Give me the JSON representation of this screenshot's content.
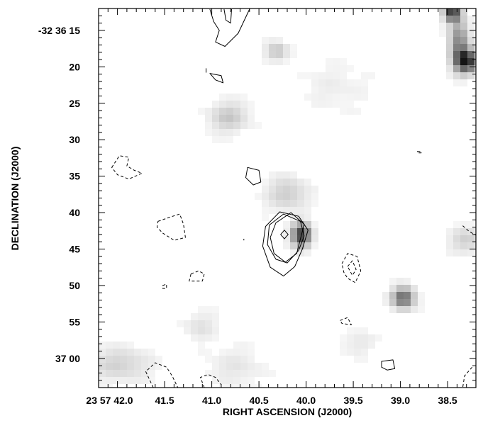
{
  "chart_data": {
    "type": "heatmap",
    "title": "",
    "xlabel": "RIGHT ASCENSION (J2000)",
    "ylabel": "DECLINATION (J2000)",
    "x_unit": "seconds of RA (23 57 ss)",
    "y_unit": "arcsec offset (-32 36 ss)",
    "xlim": [
      42.2,
      38.2
    ],
    "ylim": [
      12.0,
      64.0
    ],
    "colormap": "grayscale, white = low, black = high",
    "x_ticks": [
      {
        "value": 42.0,
        "label": "23 57 42.0"
      },
      {
        "value": 41.5,
        "label": "41.5"
      },
      {
        "value": 41.0,
        "label": "41.0"
      },
      {
        "value": 40.5,
        "label": "40.5"
      },
      {
        "value": 40.0,
        "label": "40.0"
      },
      {
        "value": 39.5,
        "label": "39.5"
      },
      {
        "value": 39.0,
        "label": "39.0"
      },
      {
        "value": 38.5,
        "label": "38.5"
      }
    ],
    "y_ticks": [
      {
        "value": 15,
        "label": "-32 36 15"
      },
      {
        "value": 20,
        "label": "20"
      },
      {
        "value": 25,
        "label": "25"
      },
      {
        "value": 30,
        "label": "30"
      },
      {
        "value": 35,
        "label": "35"
      },
      {
        "value": 40,
        "label": "40"
      },
      {
        "value": 45,
        "label": "45"
      },
      {
        "value": 50,
        "label": "50"
      },
      {
        "value": 55,
        "label": "55"
      },
      {
        "value": 60,
        "label": "37 00"
      }
    ],
    "image_sources": [
      {
        "ra": 40.05,
        "dec": 43.1,
        "sigma_ra": 0.07,
        "sigma_dec": 1.1,
        "amplitude": 0.75
      },
      {
        "ra": 40.2,
        "dec": 37.4,
        "sigma_ra": 0.15,
        "sigma_dec": 1.6,
        "amplitude": 0.18
      },
      {
        "ra": 38.97,
        "dec": 51.7,
        "sigma_ra": 0.08,
        "sigma_dec": 1.0,
        "amplitude": 0.6
      },
      {
        "ra": 38.3,
        "dec": 19.2,
        "sigma_ra": 0.08,
        "sigma_dec": 1.1,
        "amplitude": 0.85
      },
      {
        "ra": 38.38,
        "dec": 16.5,
        "sigma_ra": 0.07,
        "sigma_dec": 2.2,
        "amplitude": 0.45
      },
      {
        "ra": 38.45,
        "dec": 12.6,
        "sigma_ra": 0.06,
        "sigma_dec": 0.8,
        "amplitude": 0.75
      },
      {
        "ra": 40.31,
        "dec": 17.9,
        "sigma_ra": 0.08,
        "sigma_dec": 0.9,
        "amplitude": 0.22
      },
      {
        "ra": 40.82,
        "dec": 26.9,
        "sigma_ra": 0.14,
        "sigma_dec": 1.4,
        "amplitude": 0.2
      },
      {
        "ra": 38.3,
        "dec": 43.8,
        "sigma_ra": 0.12,
        "sigma_dec": 1.2,
        "amplitude": 0.17
      },
      {
        "ra": 41.98,
        "dec": 60.8,
        "sigma_ra": 0.22,
        "sigma_dec": 1.6,
        "amplitude": 0.16
      },
      {
        "ra": 41.12,
        "dec": 55.6,
        "sigma_ra": 0.12,
        "sigma_dec": 1.3,
        "amplitude": 0.1
      },
      {
        "ra": 39.45,
        "dec": 57.9,
        "sigma_ra": 0.14,
        "sigma_dec": 1.2,
        "amplitude": 0.07
      },
      {
        "ra": 40.75,
        "dec": 61.2,
        "sigma_ra": 0.2,
        "sigma_dec": 1.8,
        "amplitude": 0.08
      },
      {
        "ra": 39.7,
        "dec": 22.8,
        "sigma_ra": 0.25,
        "sigma_dec": 2.2,
        "amplitude": 0.05
      }
    ],
    "contours": [
      {
        "name": "source-contour-1",
        "style": "solid",
        "closed": true,
        "points": [
          [
            40.32,
            41.4
          ],
          [
            40.16,
            40.0
          ],
          [
            40.02,
            41.6
          ],
          [
            40.06,
            43.6
          ],
          [
            40.1,
            45.6
          ],
          [
            40.22,
            46.8
          ],
          [
            40.34,
            45.6
          ],
          [
            40.38,
            43.4
          ]
        ]
      },
      {
        "name": "source-contour-2",
        "style": "solid",
        "closed": true,
        "points": [
          [
            40.39,
            41.7
          ],
          [
            40.24,
            40.2
          ],
          [
            40.06,
            41.2
          ],
          [
            40.02,
            43.2
          ],
          [
            40.08,
            45.2
          ],
          [
            40.2,
            46.9
          ],
          [
            40.32,
            46.4
          ],
          [
            40.41,
            44.4
          ]
        ]
      },
      {
        "name": "source-contour-3",
        "style": "solid",
        "closed": true,
        "points": [
          [
            40.43,
            41.9
          ],
          [
            40.28,
            39.9
          ],
          [
            40.08,
            40.5
          ],
          [
            39.98,
            42.4
          ],
          [
            40.04,
            45.0
          ],
          [
            40.12,
            47.4
          ],
          [
            40.24,
            48.7
          ],
          [
            40.38,
            47.5
          ],
          [
            40.46,
            44.6
          ]
        ]
      },
      {
        "name": "source-contour-4",
        "style": "solid",
        "closed": true,
        "points": [
          [
            40.23,
            42.4
          ],
          [
            40.19,
            43.0
          ],
          [
            40.23,
            43.6
          ],
          [
            40.27,
            43.0
          ]
        ]
      },
      {
        "name": "contour-top-1",
        "style": "solid",
        "closed": false,
        "points": [
          [
            41.02,
            12.1
          ],
          [
            40.98,
            13.8
          ],
          [
            40.92,
            15.0
          ],
          [
            40.96,
            16.6
          ],
          [
            40.86,
            17.2
          ],
          [
            40.72,
            15.4
          ],
          [
            40.6,
            12.1
          ]
        ]
      },
      {
        "name": "contour-top-2",
        "style": "solid",
        "closed": false,
        "points": [
          [
            40.87,
            12.1
          ],
          [
            40.85,
            13.6
          ],
          [
            40.8,
            14.0
          ],
          [
            40.79,
            12.1
          ]
        ]
      },
      {
        "name": "contour-small-a",
        "style": "solid",
        "closed": true,
        "points": [
          [
            41.02,
            20.9
          ],
          [
            40.9,
            21.2
          ],
          [
            40.88,
            22.2
          ],
          [
            40.96,
            21.8
          ]
        ]
      },
      {
        "name": "contour-small-b",
        "style": "solid",
        "closed": false,
        "points": [
          [
            41.06,
            20.2
          ],
          [
            41.06,
            20.8
          ]
        ]
      },
      {
        "name": "contour-blob-35",
        "style": "solid",
        "closed": true,
        "points": [
          [
            40.62,
            33.8
          ],
          [
            40.5,
            34.2
          ],
          [
            40.48,
            35.8
          ],
          [
            40.56,
            36.2
          ],
          [
            40.64,
            35.2
          ]
        ]
      },
      {
        "name": "contour-39-57",
        "style": "solid",
        "closed": true,
        "points": [
          [
            39.2,
            60.4
          ],
          [
            39.08,
            60.2
          ],
          [
            39.06,
            61.4
          ],
          [
            39.14,
            61.6
          ],
          [
            39.2,
            61.2
          ]
        ]
      },
      {
        "name": "contour-right-edge",
        "style": "dashed",
        "closed": false,
        "points": [
          [
            38.34,
            41.8
          ],
          [
            38.27,
            42.6
          ],
          [
            38.2,
            43.1
          ]
        ]
      },
      {
        "name": "dashed-contour-1",
        "style": "dashed",
        "closed": true,
        "points": [
          [
            42.06,
            33.8
          ],
          [
            41.98,
            32.2
          ],
          [
            41.88,
            32.4
          ],
          [
            41.9,
            33.6
          ],
          [
            41.82,
            34.2
          ],
          [
            41.74,
            34.6
          ],
          [
            41.88,
            35.4
          ],
          [
            42.0,
            34.8
          ]
        ]
      },
      {
        "name": "dashed-contour-2",
        "style": "dashed",
        "closed": true,
        "points": [
          [
            41.57,
            41.2
          ],
          [
            41.44,
            40.6
          ],
          [
            41.34,
            40.2
          ],
          [
            41.3,
            41.6
          ],
          [
            41.28,
            43.4
          ],
          [
            41.4,
            43.8
          ],
          [
            41.52,
            42.8
          ],
          [
            41.58,
            42.0
          ]
        ]
      },
      {
        "name": "dashed-contour-3",
        "style": "dashed",
        "closed": true,
        "points": [
          [
            41.22,
            48.4
          ],
          [
            41.14,
            48.0
          ],
          [
            41.08,
            48.4
          ],
          [
            41.1,
            49.4
          ],
          [
            41.24,
            49.4
          ]
        ]
      },
      {
        "name": "dashed-contour-4",
        "style": "dashed",
        "closed": true,
        "points": [
          [
            39.62,
            47.0
          ],
          [
            39.56,
            45.6
          ],
          [
            39.46,
            46.0
          ],
          [
            39.42,
            48.0
          ],
          [
            39.48,
            49.6
          ],
          [
            39.56,
            49.0
          ],
          [
            39.6,
            48.2
          ]
        ]
      },
      {
        "name": "dashed-contour-5",
        "style": "dashed",
        "closed": true,
        "points": [
          [
            39.56,
            47.4
          ],
          [
            39.51,
            46.6
          ],
          [
            39.47,
            47.8
          ],
          [
            39.51,
            48.6
          ]
        ]
      },
      {
        "name": "dashed-contour-6",
        "style": "dashed",
        "closed": true,
        "points": [
          [
            39.64,
            54.8
          ],
          [
            39.56,
            54.4
          ],
          [
            39.52,
            55.4
          ],
          [
            39.62,
            55.2
          ]
        ]
      },
      {
        "name": "dashed-contour-7",
        "style": "dashed",
        "closed": true,
        "points": [
          [
            41.52,
            50.0
          ],
          [
            41.48,
            49.8
          ],
          [
            41.48,
            50.4
          ],
          [
            41.52,
            50.4
          ]
        ]
      },
      {
        "name": "dashed-contour-8",
        "style": "dashed",
        "closed": false,
        "points": [
          [
            41.62,
            64.0
          ],
          [
            41.7,
            61.8
          ],
          [
            41.6,
            60.6
          ],
          [
            41.48,
            61.2
          ],
          [
            41.42,
            62.4
          ],
          [
            41.36,
            64.0
          ]
        ]
      },
      {
        "name": "dashed-contour-9",
        "style": "dashed",
        "closed": false,
        "points": [
          [
            41.08,
            64.0
          ],
          [
            41.12,
            62.6
          ],
          [
            41.04,
            62.2
          ],
          [
            40.96,
            62.6
          ],
          [
            40.9,
            63.6
          ]
        ]
      },
      {
        "name": "dashed-contour-10",
        "style": "dashed",
        "closed": true,
        "points": [
          [
            38.82,
            31.6
          ],
          [
            38.78,
            31.6
          ],
          [
            38.78,
            31.8
          ],
          [
            38.82,
            31.8
          ]
        ]
      },
      {
        "name": "dashed-contour-11",
        "style": "dashed",
        "closed": false,
        "points": [
          [
            38.24,
            61.2
          ],
          [
            38.32,
            62.4
          ],
          [
            38.34,
            64.0
          ]
        ]
      },
      {
        "name": "contour-dot",
        "style": "solid",
        "closed": false,
        "points": [
          [
            40.66,
            43.6
          ],
          [
            40.66,
            43.8
          ]
        ]
      }
    ]
  }
}
